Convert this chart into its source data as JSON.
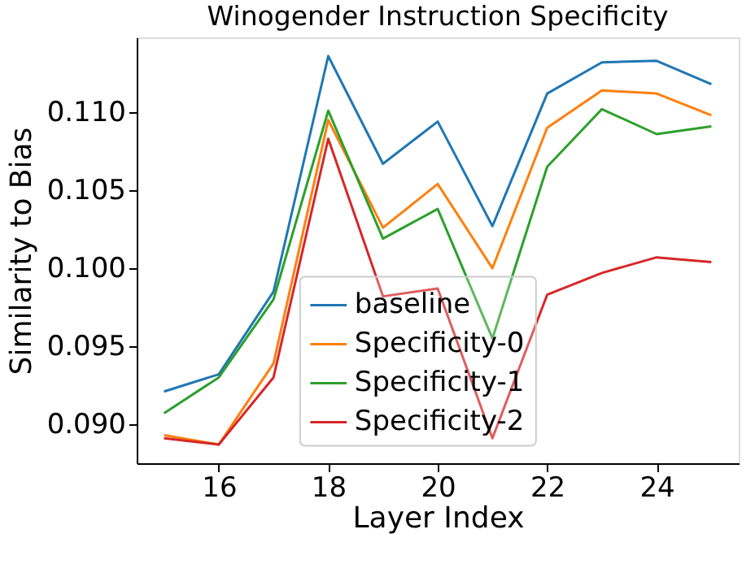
{
  "chart_data": {
    "type": "line",
    "title": "Winogender Instruction Specificity",
    "xlabel": "Layer Index",
    "ylabel": "Similarity to Bias",
    "x": [
      15,
      16,
      17,
      18,
      19,
      20,
      21,
      22,
      23,
      24,
      25
    ],
    "series": [
      {
        "name": "baseline",
        "color": "#1f77b4",
        "values": [
          0.0921,
          0.0932,
          0.0985,
          0.1136,
          0.1067,
          0.1094,
          0.1027,
          0.1112,
          0.1132,
          0.1133,
          0.1118
        ]
      },
      {
        "name": "Specificity-0",
        "color": "#ff7f0e",
        "values": [
          0.0893,
          0.0887,
          0.0939,
          0.1095,
          0.1026,
          0.1054,
          0.1,
          0.109,
          0.1114,
          0.1112,
          0.1098
        ]
      },
      {
        "name": "Specificity-1",
        "color": "#2ca02c",
        "values": [
          0.0907,
          0.093,
          0.098,
          0.1101,
          0.1019,
          0.1038,
          0.0955,
          0.1065,
          0.1102,
          0.1086,
          0.1091
        ]
      },
      {
        "name": "Specificity-2",
        "color": "#d62728",
        "values": [
          0.0891,
          0.0887,
          0.093,
          0.1083,
          0.0982,
          0.0987,
          0.0891,
          0.0983,
          0.0997,
          0.1007,
          0.1004
        ]
      }
    ],
    "xlim": [
      14.5,
      25.5
    ],
    "xticks": [
      16,
      18,
      20,
      22,
      24
    ],
    "ylim": [
      0.0875,
      0.1148
    ],
    "yticks": [
      {
        "value": 0.09,
        "label": "0.090"
      },
      {
        "value": 0.095,
        "label": "0.095"
      },
      {
        "value": 0.1,
        "label": "0.100"
      },
      {
        "value": 0.105,
        "label": "0.105"
      },
      {
        "value": 0.11,
        "label": "0.110"
      }
    ],
    "legend": "bottom",
    "grid": false,
    "marker": "none",
    "line_style": "solid"
  }
}
